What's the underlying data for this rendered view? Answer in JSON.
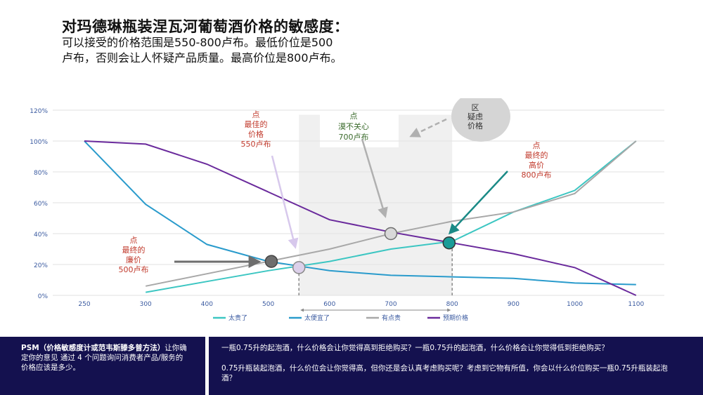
{
  "header": {
    "title": "对玛德琳瓶装涅瓦河葡萄酒价格的敏感度：",
    "subtitle": "可以接受的价格范围是550-800卢布。最低价位是500卢布，否则会让人怀疑产品质量。最高价位是800卢布。"
  },
  "chart_data": {
    "type": "line",
    "x": [
      250,
      300,
      400,
      500,
      600,
      700,
      800,
      900,
      1000,
      1100
    ],
    "xticks": [
      "250",
      "300",
      "400",
      "500",
      "600",
      "700",
      "800",
      "900",
      "1000",
      "1100"
    ],
    "yticks": [
      "0%",
      "20%",
      "40%",
      "60%",
      "80%",
      "100%",
      "120%"
    ],
    "ylim": [
      0,
      120
    ],
    "series": [
      {
        "name": "太贵了",
        "color": "#3cc6c2",
        "points": [
          [
            300,
            2
          ],
          [
            400,
            9
          ],
          [
            500,
            16
          ],
          [
            550,
            19
          ],
          [
            600,
            22
          ],
          [
            700,
            30
          ],
          [
            800,
            35
          ],
          [
            900,
            54
          ],
          [
            1000,
            68
          ],
          [
            1100,
            100
          ]
        ]
      },
      {
        "name": "太便宜了",
        "color": "#2a9bcc",
        "points": [
          [
            250,
            100
          ],
          [
            300,
            59
          ],
          [
            400,
            33
          ],
          [
            500,
            22
          ],
          [
            550,
            19
          ],
          [
            600,
            16
          ],
          [
            700,
            13
          ],
          [
            800,
            12
          ],
          [
            900,
            11
          ],
          [
            1000,
            8
          ],
          [
            1100,
            7
          ]
        ]
      },
      {
        "name": "有点贵",
        "color": "#a8a8a8",
        "points": [
          [
            300,
            6
          ],
          [
            400,
            14
          ],
          [
            500,
            22
          ],
          [
            600,
            30
          ],
          [
            700,
            40
          ],
          [
            800,
            48
          ],
          [
            900,
            54
          ],
          [
            1000,
            66
          ],
          [
            1100,
            100
          ]
        ]
      },
      {
        "name": "预期价格",
        "color": "#6a2a9c",
        "points": [
          [
            250,
            100
          ],
          [
            300,
            98
          ],
          [
            400,
            85
          ],
          [
            500,
            67
          ],
          [
            600,
            49
          ],
          [
            700,
            41
          ],
          [
            800,
            34
          ],
          [
            900,
            27
          ],
          [
            1000,
            18
          ],
          [
            1100,
            0
          ]
        ]
      }
    ],
    "shaded_range": [
      550,
      800
    ],
    "markers": [
      {
        "name": "marker-min-price",
        "x": 505,
        "y": 22,
        "fill": "#6e6e6e",
        "stroke": "#444444"
      },
      {
        "name": "marker-best-price",
        "x": 550,
        "y": 18,
        "fill": "#dcd0ea",
        "stroke": "#8a8a8a"
      },
      {
        "name": "marker-indifferent",
        "x": 700,
        "y": 40,
        "fill": "#d9d9d9",
        "stroke": "#6e6e6e"
      },
      {
        "name": "marker-max-price",
        "x": 795,
        "y": 34,
        "fill": "#1a9c98",
        "stroke": "#333333"
      }
    ],
    "annotations": {
      "best": "点\n最佳的\n价格\n550卢布",
      "indifferent": "点\n漠不关心\n700卢布",
      "doubt": "区\n疑虑\n价格",
      "max": "点\n最终的\n高价\n800卢布",
      "min": "点\n最终的\n廉价\n500卢布"
    },
    "colors": {
      "annotation_red": "#c0392b",
      "annotation_green": "#3b6b2c",
      "axis_text": "#3a5aa0",
      "grid": "#e2e2e2",
      "shade": "#f0f0f0"
    }
  },
  "footer": {
    "left_bold": "PSM（价格敏感度计或范韦斯滕多普方法）",
    "left_rest": "让你确定你的意见 通过 4 个问题询问消费者产品/服务的价格应该是多少。",
    "right_q1": "一瓶0.75升的起泡酒，什么价格会让你觉得高到拒绝购买？一瓶0.75升的起泡酒，什么价格会让你觉得低到拒绝购买？",
    "right_q2": "0.75升瓶装起泡酒，什么价位会让你觉得高，但你还是会认真考虑购买呢？考虑到它物有所值，你会以什么价位购买一瓶0.75升瓶装起泡酒？"
  }
}
